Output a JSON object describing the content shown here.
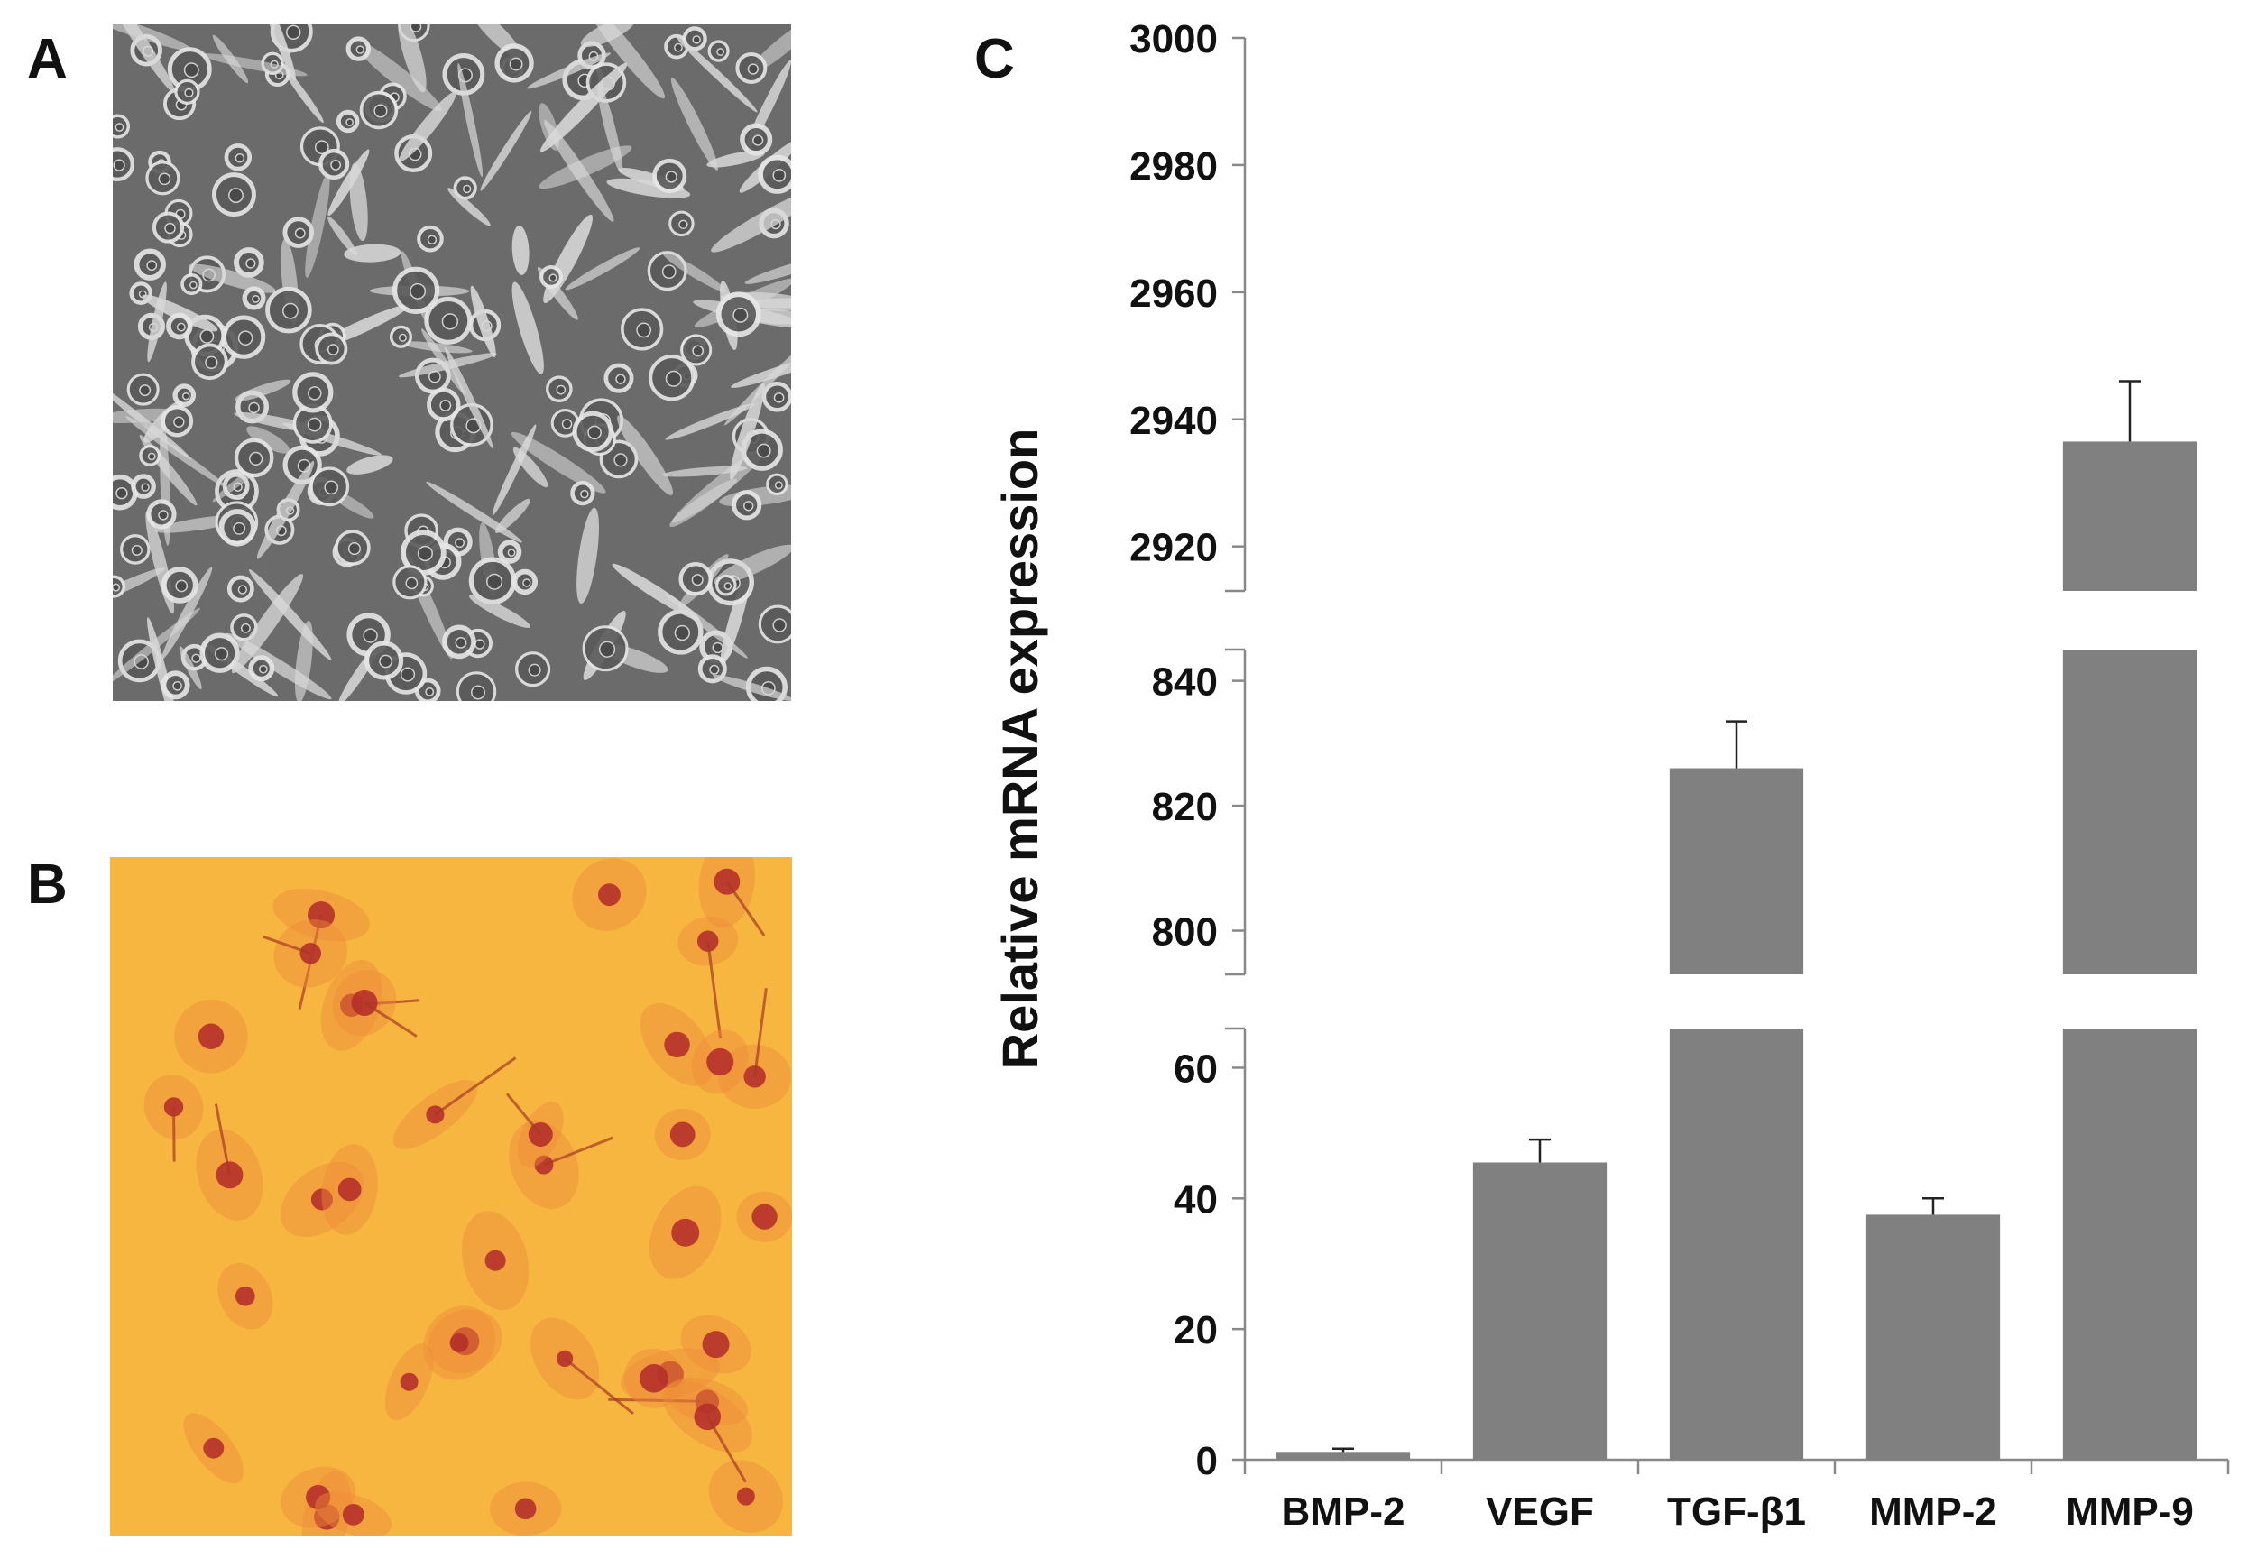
{
  "panels": {
    "a": "A",
    "b": "B",
    "c": "C"
  },
  "micrographs": {
    "a": {
      "icon": "phase-contrast-cell-micrograph",
      "tone": "#6b6b6b"
    },
    "b": {
      "icon": "stained-cell-micrograph",
      "tone": "#f5b43d"
    }
  },
  "chart_data": {
    "type": "bar",
    "ylabel": "Relative mRNA expression",
    "xlabel": "",
    "title": "",
    "categories": [
      "BMP-2",
      "VEGF",
      "TGF-β1",
      "MMP-2",
      "MMP-9"
    ],
    "values": [
      1.2,
      45.5,
      826,
      37.5,
      2936.5
    ],
    "errors": [
      0.5,
      3.5,
      7.5,
      2.5,
      9.5
    ],
    "broken_axis": true,
    "segments": [
      {
        "range": [
          0,
          66
        ],
        "ticks": [
          0,
          20,
          40,
          60
        ]
      },
      {
        "range": [
          793,
          845
        ],
        "ticks": [
          800,
          820,
          840
        ]
      },
      {
        "range": [
          2913,
          3000
        ],
        "ticks": [
          2920,
          2940,
          2960,
          2980,
          3000
        ]
      }
    ],
    "bar_color": "#808080",
    "grid": false,
    "legend": "none"
  }
}
